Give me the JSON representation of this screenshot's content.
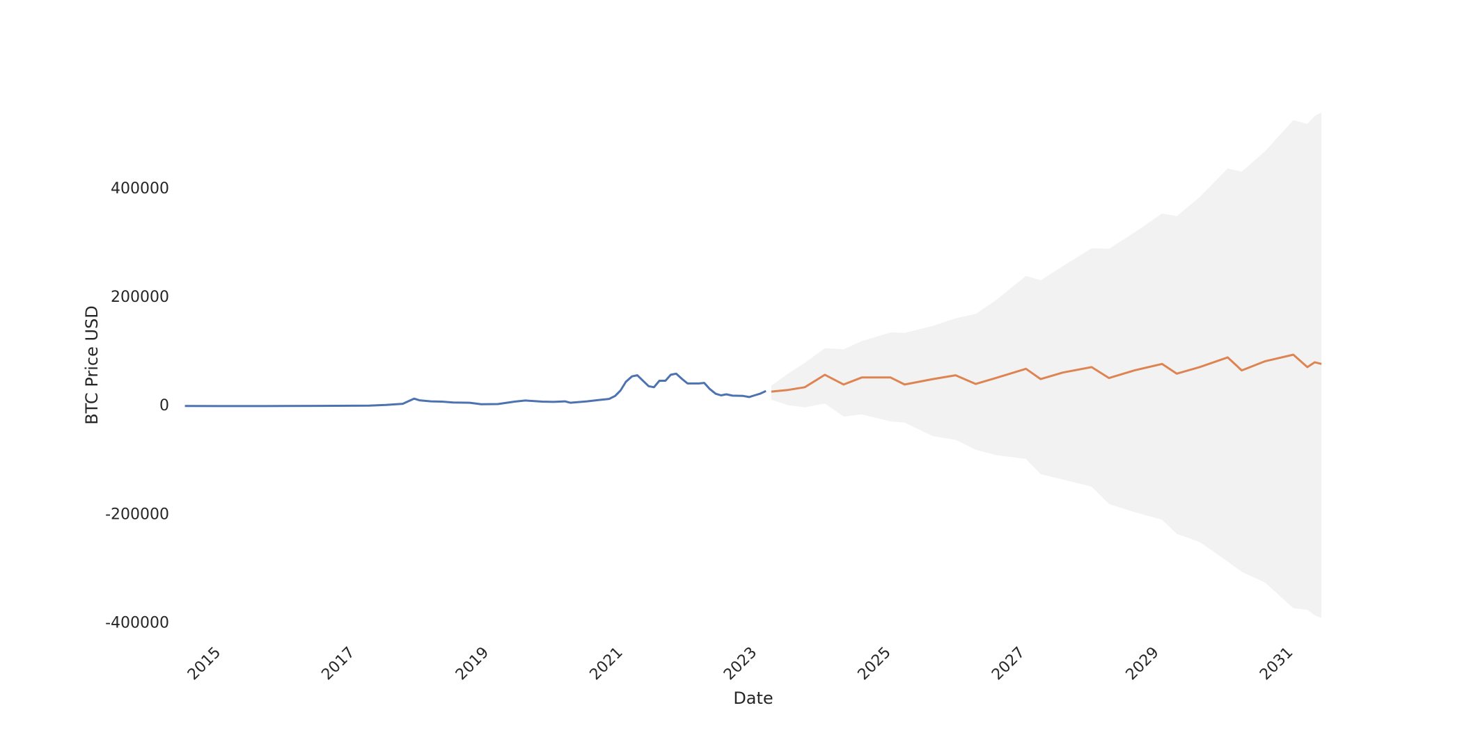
{
  "chart_data": {
    "type": "line",
    "x_label": "Date",
    "y_label": "BTC Price USD",
    "xlim": [
      2014.4,
      2031.5
    ],
    "xticks": [
      2015,
      2017,
      2019,
      2021,
      2023,
      2025,
      2027,
      2029,
      2031
    ],
    "ylim": [
      -420000,
      560000
    ],
    "yticks": [
      -400000,
      -200000,
      0,
      200000,
      400000
    ],
    "grid": false,
    "series": [
      {
        "color": "#4c72b0",
        "x": [
          2014.5,
          2015.0,
          2015.5,
          2016.0,
          2016.5,
          2017.0,
          2017.25,
          2017.5,
          2017.75,
          2017.92,
          2018.0,
          2018.17,
          2018.33,
          2018.5,
          2018.75,
          2018.92,
          2019.17,
          2019.42,
          2019.58,
          2019.83,
          2020.0,
          2020.17,
          2020.25,
          2020.5,
          2020.67,
          2020.83,
          2020.92,
          2021.0,
          2021.08,
          2021.17,
          2021.25,
          2021.42,
          2021.5,
          2021.58,
          2021.67,
          2021.75,
          2021.83,
          2021.92,
          2022.0,
          2022.17,
          2022.25,
          2022.33,
          2022.42,
          2022.5,
          2022.58,
          2022.67,
          2022.83,
          2022.92,
          2023.0,
          2023.08,
          2023.17
        ],
        "values": [
          400,
          250,
          250,
          430,
          650,
          1000,
          1200,
          2500,
          4500,
          14000,
          11000,
          9000,
          8500,
          7000,
          6500,
          3800,
          4000,
          8500,
          10500,
          8500,
          8000,
          9000,
          6500,
          9000,
          11500,
          13500,
          19000,
          29000,
          45000,
          55000,
          57000,
          37000,
          35000,
          47000,
          47000,
          58000,
          60000,
          50000,
          42000,
          42000,
          43000,
          32000,
          23000,
          20000,
          22000,
          19500,
          19000,
          17000,
          20000,
          23000,
          28000
        ]
      },
      {
        "color": "#dd8452",
        "x": [
          2023.25,
          2023.5,
          2023.75,
          2024.05,
          2024.33,
          2024.6,
          2025.03,
          2025.24,
          2025.66,
          2026.0,
          2026.3,
          2026.6,
          2027.05,
          2027.27,
          2027.6,
          2028.03,
          2028.29,
          2028.67,
          2029.08,
          2029.3,
          2029.64,
          2030.06,
          2030.27,
          2030.62,
          2031.04,
          2031.25,
          2031.36,
          2031.46
        ],
        "values": [
          27000,
          30000,
          35000,
          58000,
          40000,
          53000,
          53000,
          40000,
          50000,
          57000,
          41000,
          52000,
          69000,
          50000,
          62000,
          72000,
          52000,
          66000,
          78000,
          60000,
          72000,
          90000,
          66000,
          83000,
          95000,
          72000,
          81000,
          78000
        ]
      }
    ],
    "band": {
      "color": "#f2f2f2",
      "x": [
        2023.25,
        2023.5,
        2023.75,
        2024.05,
        2024.33,
        2024.6,
        2025.03,
        2025.24,
        2025.66,
        2026.0,
        2026.3,
        2026.6,
        2027.05,
        2027.27,
        2027.6,
        2028.03,
        2028.29,
        2028.67,
        2029.08,
        2029.3,
        2029.64,
        2030.06,
        2030.27,
        2030.62,
        2031.04,
        2031.25,
        2031.36,
        2031.46
      ],
      "upper": [
        38000,
        60000,
        80000,
        107000,
        105000,
        120000,
        136000,
        135000,
        148000,
        162000,
        170000,
        195000,
        240000,
        232000,
        258000,
        291000,
        290000,
        320000,
        355000,
        350000,
        385000,
        438000,
        432000,
        470000,
        527000,
        520000,
        535000,
        541000
      ],
      "lower": [
        12000,
        2000,
        -2000,
        5000,
        -19000,
        -15000,
        -28000,
        -30000,
        -55000,
        -62000,
        -80000,
        -90000,
        -97000,
        -125000,
        -135000,
        -148000,
        -180000,
        -195000,
        -209000,
        -235000,
        -250000,
        -286000,
        -305000,
        -325000,
        -372000,
        -375000,
        -385000,
        -390000
      ]
    }
  }
}
